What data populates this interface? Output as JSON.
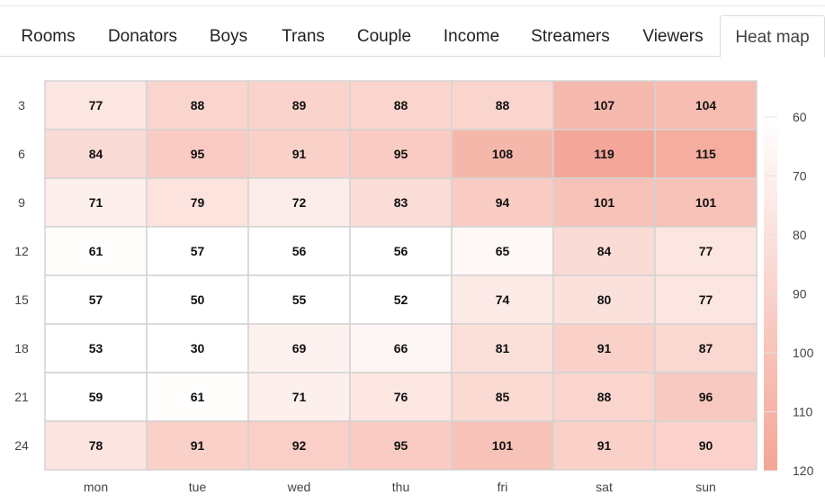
{
  "tabs": [
    {
      "label": "Rooms"
    },
    {
      "label": "Donators"
    },
    {
      "label": "Boys"
    },
    {
      "label": "Trans"
    },
    {
      "label": "Couple"
    },
    {
      "label": "Income"
    },
    {
      "label": "Streamers"
    },
    {
      "label": "Viewers"
    },
    {
      "label": "Heat map",
      "active": true
    }
  ],
  "colors": {
    "low": "#ffffff",
    "high": "#f4a596",
    "grid": "#d3d3d3"
  },
  "chart_data": {
    "type": "heatmap",
    "title": "",
    "xlabel": "",
    "ylabel": "",
    "x": [
      "mon",
      "tue",
      "wed",
      "thu",
      "fri",
      "sat",
      "sun"
    ],
    "y": [
      "3",
      "6",
      "9",
      "12",
      "15",
      "18",
      "21",
      "24"
    ],
    "values": [
      [
        77,
        88,
        89,
        88,
        88,
        107,
        104
      ],
      [
        84,
        95,
        91,
        95,
        108,
        119,
        115
      ],
      [
        71,
        79,
        72,
        83,
        94,
        101,
        101
      ],
      [
        61,
        57,
        56,
        56,
        65,
        84,
        77
      ],
      [
        57,
        50,
        55,
        52,
        74,
        80,
        77
      ],
      [
        53,
        30,
        69,
        66,
        81,
        91,
        87
      ],
      [
        59,
        61,
        71,
        76,
        85,
        88,
        96
      ],
      [
        78,
        91,
        92,
        95,
        101,
        91,
        90
      ]
    ],
    "color_range": [
      60,
      120
    ],
    "legend_ticks": [
      "60",
      "70",
      "80",
      "90",
      "100",
      "110",
      "120"
    ],
    "legend_placement": "right"
  }
}
